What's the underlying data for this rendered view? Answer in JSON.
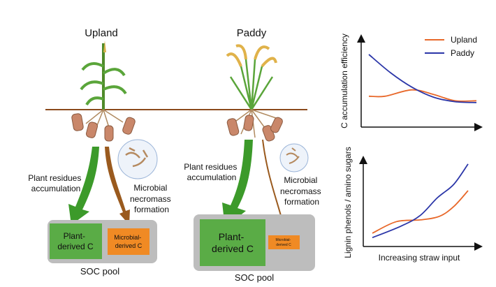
{
  "panels": {
    "upland": {
      "title": "Upland",
      "plant_label": [
        "Plant residues",
        "accumulation"
      ],
      "microbial_label": [
        "Microbial",
        "necromass",
        "formation"
      ],
      "plant_box": [
        "Plant-",
        "derived C"
      ],
      "microbial_box": [
        "Microbial-",
        "derived C"
      ],
      "pool_label": "SOC pool"
    },
    "paddy": {
      "title": "Paddy",
      "plant_label": [
        "Plant residues",
        "accumulation"
      ],
      "microbial_label": [
        "Microbial",
        "necromass",
        "formation"
      ],
      "plant_box": [
        "Plant-",
        "derived C"
      ],
      "microbial_box": [
        "Microbial-",
        "derived C"
      ],
      "pool_label": "SOC pool"
    }
  },
  "colors": {
    "upland": "#e8682a",
    "paddy": "#2b36a8",
    "plant_box": "#5aac46",
    "microbial_box": "#f08a24",
    "pool": "#bdbdbd",
    "soil": "#8b4a1c",
    "green_arrow": "#3c9a2a",
    "brown_arrow": "#9a5a1e"
  },
  "chart_data": [
    {
      "type": "line",
      "ylabel": "C accumulation efficiency",
      "xlabel": "",
      "legend": "top-right",
      "series": [
        {
          "name": "Upland",
          "x": [
            0,
            0.15,
            0.4,
            0.6,
            0.8,
            1
          ],
          "y": [
            0.34,
            0.34,
            0.41,
            0.36,
            0.29,
            0.29
          ]
        },
        {
          "name": "Paddy",
          "x": [
            0,
            0.2,
            0.4,
            0.6,
            0.8,
            1
          ],
          "y": [
            0.8,
            0.6,
            0.44,
            0.33,
            0.28,
            0.27
          ]
        }
      ]
    },
    {
      "type": "line",
      "ylabel": "Lignin phenols / amino sugars",
      "xlabel": "Increasing straw input",
      "series": [
        {
          "name": "Upland",
          "x": [
            0,
            0.25,
            0.5,
            0.7,
            0.85,
            1
          ],
          "y": [
            0.15,
            0.28,
            0.3,
            0.34,
            0.45,
            0.63
          ]
        },
        {
          "name": "Paddy",
          "x": [
            0,
            0.3,
            0.5,
            0.68,
            0.85,
            1
          ],
          "y": [
            0.1,
            0.23,
            0.35,
            0.55,
            0.7,
            0.93
          ]
        }
      ]
    }
  ]
}
